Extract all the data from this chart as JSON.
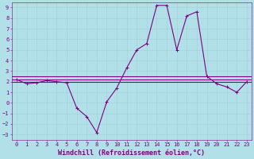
{
  "background_color": "#b2e0e8",
  "line_color": "#800080",
  "xlabel": "Windchill (Refroidissement éolien,°C)",
  "xlim": [
    -0.5,
    23.5
  ],
  "ylim": [
    -3.5,
    9.5
  ],
  "xticks": [
    0,
    1,
    2,
    3,
    4,
    5,
    6,
    7,
    8,
    9,
    10,
    11,
    12,
    13,
    14,
    15,
    16,
    17,
    18,
    19,
    20,
    21,
    22,
    23
  ],
  "yticks": [
    -3,
    -2,
    -1,
    0,
    1,
    2,
    3,
    4,
    5,
    6,
    7,
    8,
    9
  ],
  "flat_line1_y": 2.5,
  "flat_line2_y": 2.2,
  "flat_line3_y": 2.0,
  "curve_x": [
    0,
    1,
    2,
    3,
    4,
    5,
    6,
    7,
    8,
    9,
    10,
    11,
    12,
    13,
    14,
    15,
    16,
    17,
    18,
    19,
    20,
    21,
    22,
    23
  ],
  "curve_y": [
    2.2,
    1.8,
    1.9,
    2.1,
    2.0,
    1.9,
    -0.5,
    -1.3,
    -2.8,
    0.1,
    1.4,
    3.3,
    5.0,
    5.6,
    9.2,
    9.2,
    5.0,
    8.2,
    8.6,
    2.5,
    1.8,
    1.5,
    1.0,
    2.0
  ],
  "marker_size": 2.5,
  "tick_fontsize": 5.0,
  "label_fontsize": 6.0,
  "linewidth": 0.8
}
